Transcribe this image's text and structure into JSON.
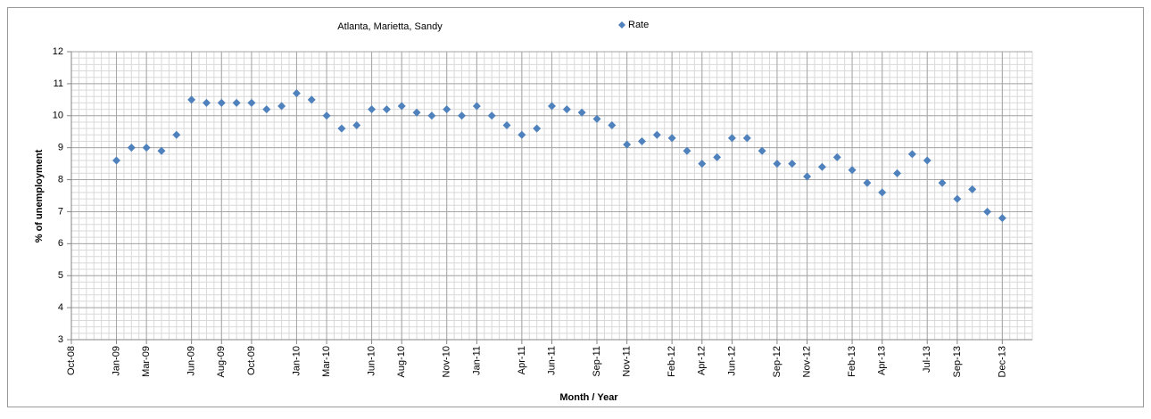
{
  "chart_data": {
    "type": "scatter",
    "title": "Atlanta, Marietta, Sandy",
    "x_label": "Month / Year",
    "y_label": "% of unemployment",
    "x": [
      "2009-01",
      "2009-02",
      "2009-03",
      "2009-04",
      "2009-05",
      "2009-06",
      "2009-07",
      "2009-08",
      "2009-09",
      "2009-10",
      "2009-11",
      "2009-12",
      "2010-01",
      "2010-02",
      "2010-03",
      "2010-04",
      "2010-05",
      "2010-06",
      "2010-07",
      "2010-08",
      "2010-09",
      "2010-10",
      "2010-11",
      "2010-12",
      "2011-01",
      "2011-02",
      "2011-03",
      "2011-04",
      "2011-05",
      "2011-06",
      "2011-07",
      "2011-08",
      "2011-09",
      "2011-10",
      "2011-11",
      "2011-12",
      "2012-01",
      "2012-02",
      "2012-03",
      "2012-04",
      "2012-05",
      "2012-06",
      "2012-07",
      "2012-08",
      "2012-09",
      "2012-10",
      "2012-11",
      "2012-12",
      "2013-01",
      "2013-02",
      "2013-03",
      "2013-04",
      "2013-05",
      "2013-06",
      "2013-07",
      "2013-08",
      "2013-09",
      "2013-10",
      "2013-11",
      "2013-12"
    ],
    "series": [
      {
        "name": "Rate",
        "color": "#4f81bd",
        "values": [
          8.6,
          9.0,
          9.0,
          8.9,
          9.4,
          10.5,
          10.4,
          10.4,
          10.4,
          10.4,
          10.2,
          10.3,
          10.7,
          10.5,
          10.0,
          9.6,
          9.7,
          10.2,
          10.2,
          10.3,
          10.1,
          10.0,
          10.2,
          10.0,
          10.3,
          10.0,
          9.7,
          9.4,
          9.6,
          10.3,
          10.2,
          10.1,
          9.9,
          9.7,
          9.1,
          9.2,
          9.4,
          9.3,
          8.9,
          8.5,
          8.7,
          9.3,
          9.3,
          8.9,
          8.5,
          8.5,
          8.1,
          8.4,
          8.7,
          8.3,
          7.9,
          7.6,
          8.2,
          8.8,
          8.6,
          7.9,
          7.4,
          7.7,
          7.0,
          6.8
        ]
      }
    ],
    "xlim": [
      "2008-10",
      "2014-02"
    ],
    "xticks": [
      {
        "value": "2008-10",
        "label": "Oct-08"
      },
      {
        "value": "2009-01",
        "label": "Jan-09"
      },
      {
        "value": "2009-03",
        "label": "Mar-09"
      },
      {
        "value": "2009-06",
        "label": "Jun-09"
      },
      {
        "value": "2009-08",
        "label": "Aug-09"
      },
      {
        "value": "2009-10",
        "label": "Oct-09"
      },
      {
        "value": "2010-01",
        "label": "Jan-10"
      },
      {
        "value": "2010-03",
        "label": "Mar-10"
      },
      {
        "value": "2010-06",
        "label": "Jun-10"
      },
      {
        "value": "2010-08",
        "label": "Aug-10"
      },
      {
        "value": "2010-11",
        "label": "Nov-10"
      },
      {
        "value": "2011-01",
        "label": "Jan-11"
      },
      {
        "value": "2011-04",
        "label": "Apr-11"
      },
      {
        "value": "2011-06",
        "label": "Jun-11"
      },
      {
        "value": "2011-09",
        "label": "Sep-11"
      },
      {
        "value": "2011-11",
        "label": "Nov-11"
      },
      {
        "value": "2012-02",
        "label": "Feb-12"
      },
      {
        "value": "2012-04",
        "label": "Apr-12"
      },
      {
        "value": "2012-06",
        "label": "Jun-12"
      },
      {
        "value": "2012-09",
        "label": "Sep-12"
      },
      {
        "value": "2012-11",
        "label": "Nov-12"
      },
      {
        "value": "2013-02",
        "label": "Feb-13"
      },
      {
        "value": "2013-04",
        "label": "Apr-13"
      },
      {
        "value": "2013-07",
        "label": "Jul-13"
      },
      {
        "value": "2013-09",
        "label": "Sep-13"
      },
      {
        "value": "2013-12",
        "label": "Dec-13"
      }
    ],
    "ylim": [
      3,
      12
    ],
    "yticks": [
      3,
      4,
      5,
      6,
      7,
      8,
      9,
      10,
      11,
      12
    ],
    "grid": true,
    "minor_grid": true,
    "legend": "top"
  }
}
